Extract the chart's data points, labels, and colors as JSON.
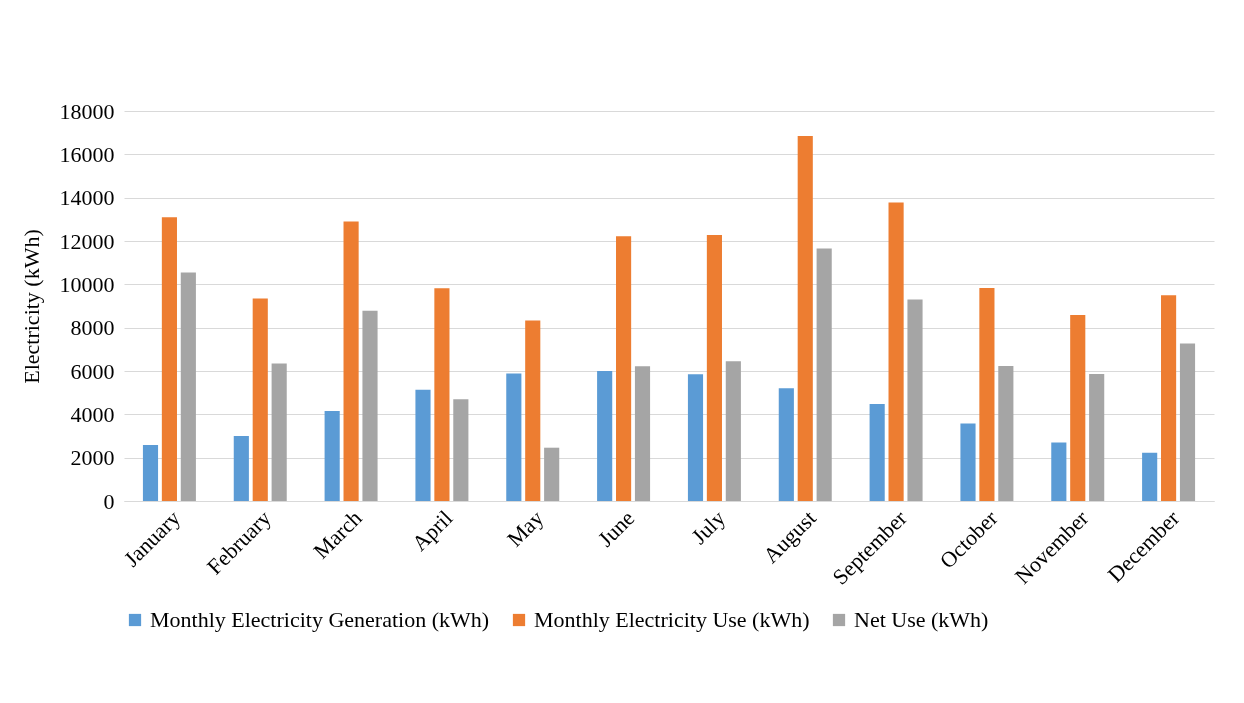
{
  "chart_data": {
    "type": "bar",
    "ylabel": "Electricity (kWh)",
    "categories": [
      "January",
      "February",
      "March",
      "April",
      "May",
      "June",
      "July",
      "August",
      "September",
      "October",
      "November",
      "December"
    ],
    "series": [
      {
        "name": "Monthly Electricity Generation (kWh)",
        "color": "#5b9bd5",
        "values": [
          2580,
          3000,
          4150,
          5130,
          5880,
          6000,
          5850,
          5200,
          4480,
          3580,
          2700,
          2230
        ]
      },
      {
        "name": "Monthly Electricity Use (kWh)",
        "color": "#ed7d31",
        "values": [
          13100,
          9350,
          12900,
          9820,
          8330,
          12220,
          12280,
          16850,
          13780,
          9830,
          8580,
          9500
        ]
      },
      {
        "name": "Net Use (kWh)",
        "color": "#a5a5a5",
        "values": [
          10550,
          6350,
          8780,
          4700,
          2460,
          6220,
          6450,
          11650,
          9300,
          6230,
          5860,
          7270
        ]
      }
    ],
    "ylim": [
      0,
      18000
    ],
    "yticks": [
      0,
      2000,
      4000,
      6000,
      8000,
      10000,
      12000,
      14000,
      16000,
      18000
    ],
    "grid": "y",
    "legend": "bottom"
  }
}
